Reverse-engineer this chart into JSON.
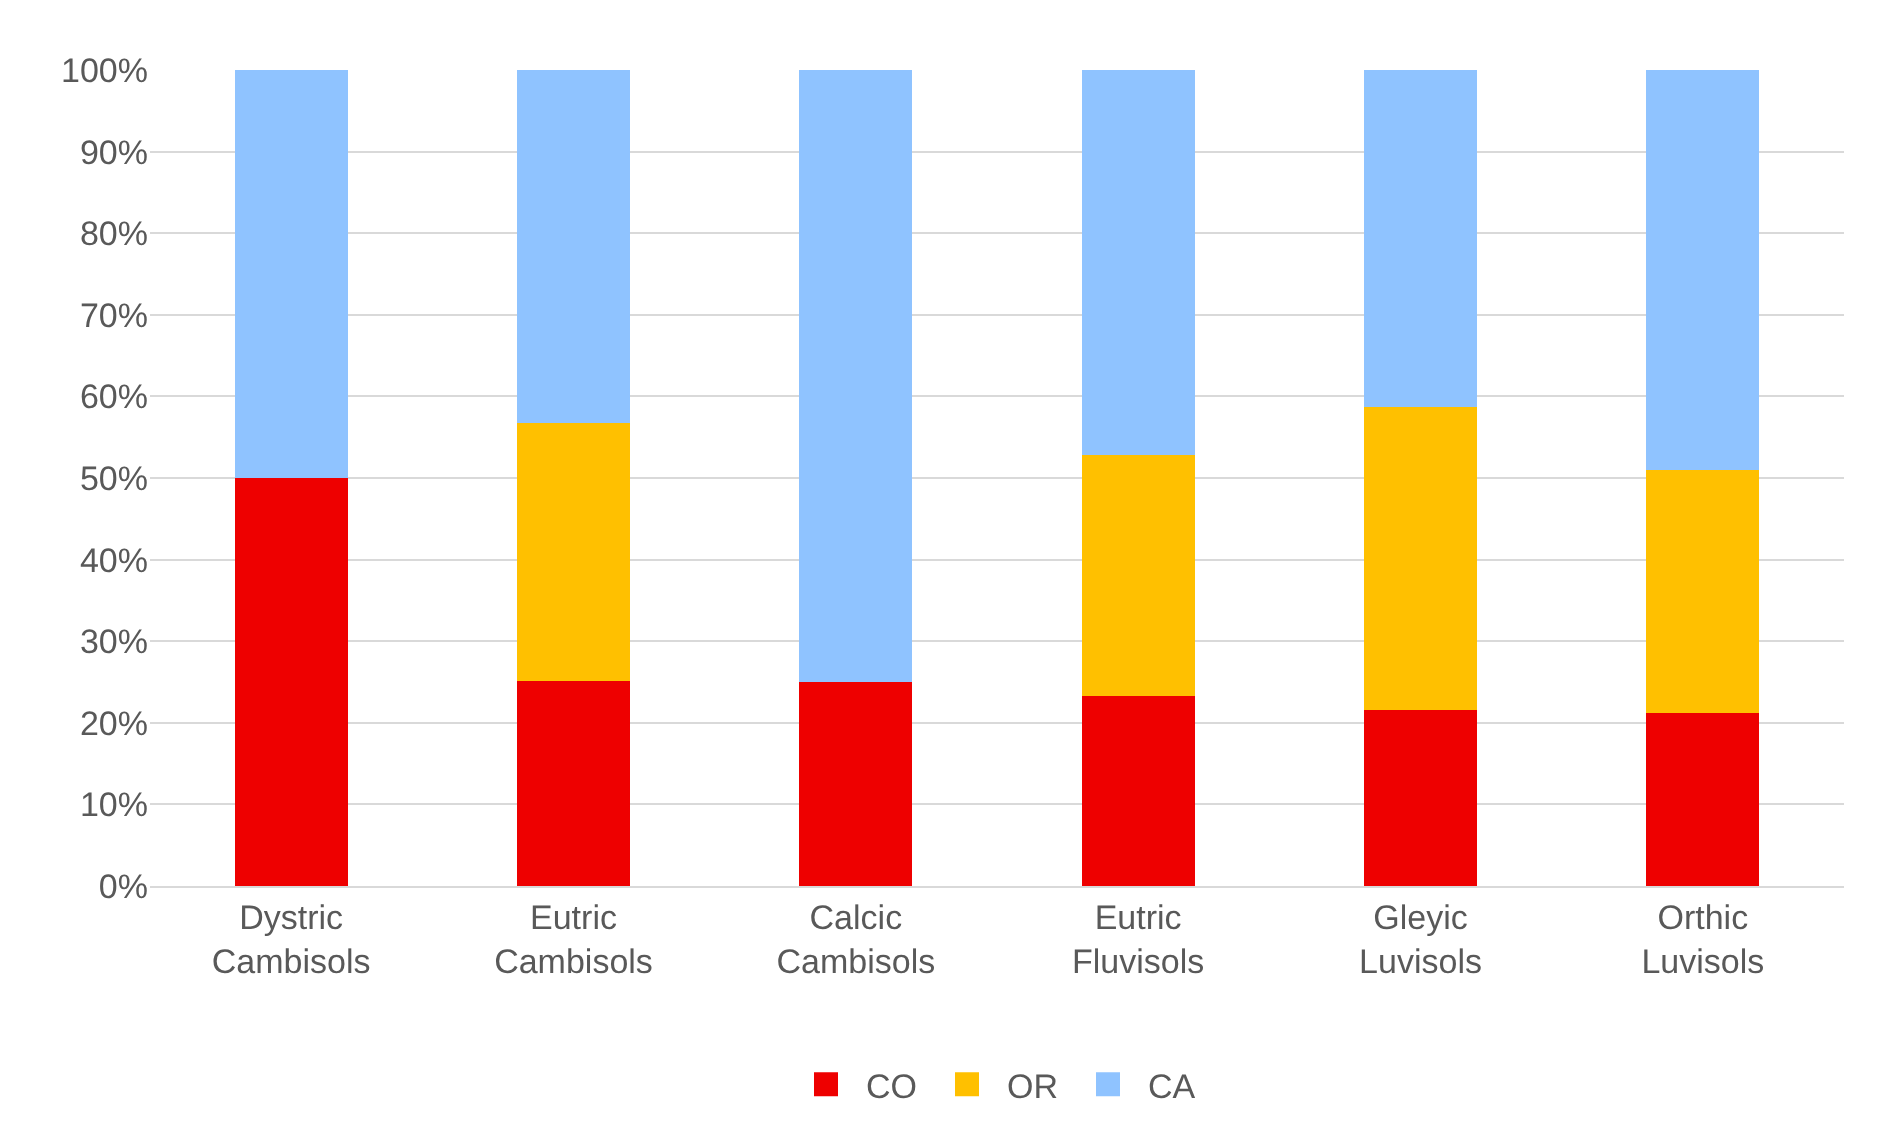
{
  "chart_data": {
    "type": "bar",
    "stacked": true,
    "categories": [
      "Dystric Cambisols",
      "Eutric Cambisols",
      "Calcic Cambisols",
      "Eutric Fluvisols",
      "Gleyic Luvisols",
      "Orthic Luvisols"
    ],
    "series": [
      {
        "name": "CO",
        "color": "#ee0000",
        "values": [
          50,
          25.1,
          25,
          23.3,
          21.6,
          21.2
        ]
      },
      {
        "name": "OR",
        "color": "#ffc000",
        "values": [
          0,
          31.6,
          0,
          29.5,
          37.1,
          29.8
        ]
      },
      {
        "name": "CA",
        "color": "#8fc3ff",
        "values": [
          50,
          43.3,
          75,
          47.2,
          41.3,
          49
        ]
      }
    ],
    "ylim": [
      0,
      100
    ],
    "yticks": [
      {
        "value": 0,
        "label": "0%"
      },
      {
        "value": 10,
        "label": "10%"
      },
      {
        "value": 20,
        "label": "20%"
      },
      {
        "value": 30,
        "label": "30%"
      },
      {
        "value": 40,
        "label": "40%"
      },
      {
        "value": 50,
        "label": "50%"
      },
      {
        "value": 60,
        "label": "60%"
      },
      {
        "value": 70,
        "label": "70%"
      },
      {
        "value": 80,
        "label": "80%"
      },
      {
        "value": 90,
        "label": "90%"
      },
      {
        "value": 100,
        "label": "100%"
      }
    ],
    "grid": "y",
    "legend": "bottom"
  }
}
